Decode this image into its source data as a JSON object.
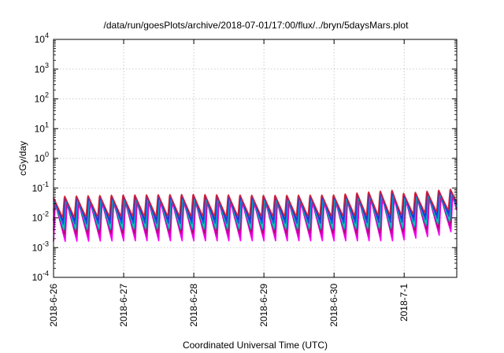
{
  "chart_data": {
    "type": "line",
    "title": "/data/run/goesPlots/archive/2018-07-01/17:00/flux/../bryn/5daysMars.plot",
    "xlabel": "Coordinated Universal Time (UTC)",
    "ylabel": "cGy/day",
    "yscale": "log",
    "ylim": [
      0.0001,
      10000
    ],
    "xlim": [
      "2018-06-26T00:00",
      "2018-07-01T18:00"
    ],
    "grid": true,
    "y_ticks": [
      {
        "base": "10",
        "exp": "-4"
      },
      {
        "base": "10",
        "exp": "-3"
      },
      {
        "base": "10",
        "exp": "-2"
      },
      {
        "base": "10",
        "exp": "-1"
      },
      {
        "base": "10",
        "exp": "0"
      },
      {
        "base": "10",
        "exp": "1"
      },
      {
        "base": "10",
        "exp": "2"
      },
      {
        "base": "10",
        "exp": "3"
      },
      {
        "base": "10",
        "exp": "4"
      }
    ],
    "x_ticks": [
      "2018-6-26",
      "2018-6-27",
      "2018-6-28",
      "2018-6-29",
      "2018-6-30",
      "2018-7-1"
    ],
    "oscillation_period_hours": 4,
    "series_colors": [
      "#ff00ff",
      "#e000d0",
      "#b8006e",
      "#00a0a0",
      "#00c8c8",
      "#1f4fe0",
      "#2d2dd6",
      "#d0203a"
    ],
    "series_envelope": {
      "x": [
        "2018-06-26T00:00",
        "2018-06-27T00:00",
        "2018-06-28T00:00",
        "2018-06-29T00:00",
        "2018-06-30T00:00",
        "2018-06-30T20:00",
        "2018-07-01T00:00",
        "2018-07-01T12:00",
        "2018-07-01T18:00"
      ],
      "peak": [
        0.055,
        0.062,
        0.065,
        0.06,
        0.062,
        0.09,
        0.07,
        0.09,
        0.1
      ],
      "trough_low": [
        0.0016,
        0.0017,
        0.0017,
        0.0017,
        0.0017,
        0.0017,
        0.0018,
        0.0026,
        0.0038
      ],
      "trough_high": [
        0.01,
        0.011,
        0.011,
        0.011,
        0.011,
        0.012,
        0.012,
        0.016,
        0.02
      ]
    }
  }
}
